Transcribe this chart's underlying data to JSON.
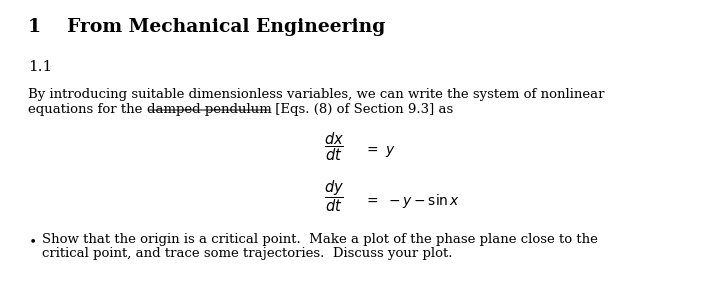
{
  "background_color": "#ffffff",
  "section_number": "1",
  "section_title": "From Mechanical Engineering",
  "subsection": "1.1",
  "line1": "By introducing suitable dimensionless variables, we can write the system of nonlinear",
  "line2_pre": "equations for the ",
  "line2_ul": "damped pendulum",
  "line2_post": " [Eqs. (8) of Section 9.3] as",
  "bullet_line1": "Show that the origin is a critical point.  Make a plot of the phase plane close to the",
  "bullet_line2": "critical point, and trace some trajectories.  Discuss your plot.",
  "font_size_section": 13.5,
  "font_size_subsection": 11,
  "font_size_body": 9.5,
  "font_size_eq": 10.5
}
